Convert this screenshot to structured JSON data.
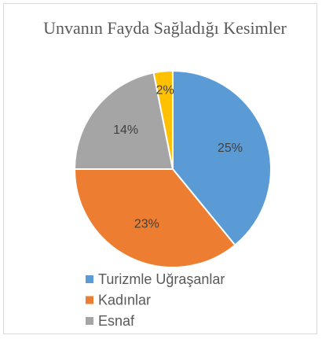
{
  "chart_data": {
    "type": "pie",
    "title": "Unvanın Fayda Sağladığı Kesimler",
    "categories": [
      "Turizmle Uğraşanlar",
      "Kadınlar",
      "Esnaf",
      null
    ],
    "values": [
      25,
      23,
      14,
      2
    ],
    "value_labels": [
      "25%",
      "23%",
      "14%",
      "2%"
    ],
    "colors": [
      "#5b9bd5",
      "#ed7d31",
      "#a5a5a5",
      "#ffc000"
    ],
    "legend": "bottom"
  }
}
